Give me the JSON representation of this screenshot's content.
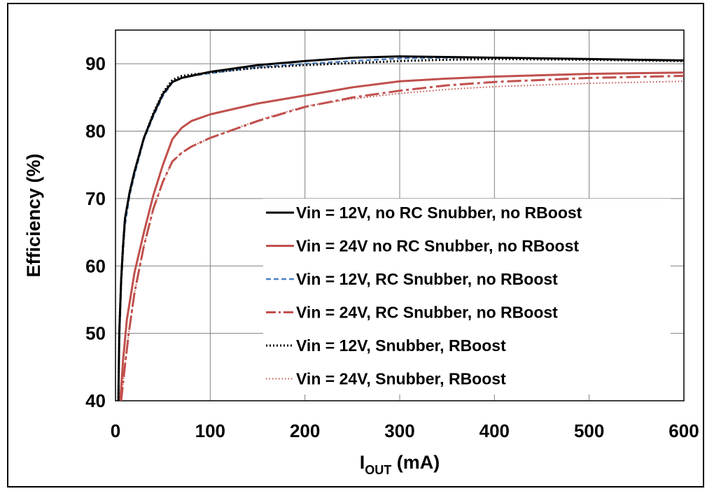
{
  "chart_data": {
    "type": "line",
    "xlabel_main": "I",
    "xlabel_sub": "OUT",
    "xlabel_unit": " (mA)",
    "ylabel": "Efficiency (%)",
    "xlim": [
      0,
      600
    ],
    "ylim": [
      40,
      95
    ],
    "xticks": [
      "0",
      "100",
      "200",
      "300",
      "400",
      "500",
      "600"
    ],
    "yticks": [
      "40",
      "50",
      "60",
      "70",
      "80",
      "90"
    ],
    "grid": true,
    "legend_position": "center-right",
    "series": [
      {
        "name": "Vin = 12V, no RC Snubber, no RBoost",
        "color": "#000000",
        "dash": "solid",
        "points": [
          [
            3,
            40
          ],
          [
            4,
            50
          ],
          [
            6,
            58
          ],
          [
            8,
            63
          ],
          [
            10,
            67
          ],
          [
            15,
            71
          ],
          [
            20,
            74
          ],
          [
            30,
            79
          ],
          [
            40,
            82.5
          ],
          [
            50,
            85.5
          ],
          [
            60,
            87.3
          ],
          [
            70,
            87.9
          ],
          [
            80,
            88.2
          ],
          [
            100,
            88.8
          ],
          [
            150,
            89.8
          ],
          [
            200,
            90.4
          ],
          [
            250,
            90.9
          ],
          [
            300,
            91.1
          ],
          [
            350,
            91.0
          ],
          [
            400,
            90.9
          ],
          [
            500,
            90.7
          ],
          [
            600,
            90.5
          ]
        ]
      },
      {
        "name": "Vin = 24V no RC Snubber, no RBoost",
        "color": "#c0504d",
        "dash": "solid",
        "points": [
          [
            5,
            40
          ],
          [
            8,
            46
          ],
          [
            12,
            52
          ],
          [
            20,
            59
          ],
          [
            30,
            65
          ],
          [
            40,
            70.5
          ],
          [
            50,
            75
          ],
          [
            60,
            78.8
          ],
          [
            70,
            80.5
          ],
          [
            80,
            81.5
          ],
          [
            100,
            82.5
          ],
          [
            150,
            84.1
          ],
          [
            200,
            85.3
          ],
          [
            250,
            86.5
          ],
          [
            300,
            87.4
          ],
          [
            350,
            87.8
          ],
          [
            400,
            88.1
          ],
          [
            500,
            88.5
          ],
          [
            600,
            88.7
          ]
        ]
      },
      {
        "name": "Vin = 12V, RC Snubber, no RBoost",
        "color": "#4f81bd",
        "dash": "dashed",
        "points": [
          [
            3,
            40
          ],
          [
            4,
            49
          ],
          [
            6,
            57
          ],
          [
            8,
            62
          ],
          [
            10,
            66
          ],
          [
            15,
            70.5
          ],
          [
            20,
            73.5
          ],
          [
            30,
            78.8
          ],
          [
            40,
            82.2
          ],
          [
            50,
            85.2
          ],
          [
            60,
            87.2
          ],
          [
            70,
            87.9
          ],
          [
            80,
            88.2
          ],
          [
            100,
            88.6
          ],
          [
            150,
            89.5
          ],
          [
            200,
            90.0
          ],
          [
            250,
            90.4
          ],
          [
            300,
            90.8
          ],
          [
            350,
            90.9
          ],
          [
            400,
            90.9
          ],
          [
            500,
            90.7
          ],
          [
            600,
            90.5
          ]
        ]
      },
      {
        "name": "Vin = 24V, RC Snubber, no RBoost",
        "color": "#c0504d",
        "dash": "longdash",
        "points": [
          [
            6,
            40
          ],
          [
            9,
            44
          ],
          [
            14,
            50
          ],
          [
            20,
            56
          ],
          [
            30,
            63
          ],
          [
            40,
            68.5
          ],
          [
            50,
            72.5
          ],
          [
            60,
            75.5
          ],
          [
            70,
            76.8
          ],
          [
            80,
            77.7
          ],
          [
            100,
            79.0
          ],
          [
            150,
            81.5
          ],
          [
            200,
            83.6
          ],
          [
            250,
            85.0
          ],
          [
            300,
            86.0
          ],
          [
            350,
            86.8
          ],
          [
            400,
            87.3
          ],
          [
            500,
            87.9
          ],
          [
            600,
            88.2
          ]
        ]
      },
      {
        "name": "Vin = 12V, Snubber, RBoost",
        "color": "#000000",
        "dash": "dotted",
        "points": [
          [
            3,
            40
          ],
          [
            4,
            50
          ],
          [
            6,
            58
          ],
          [
            8,
            63
          ],
          [
            10,
            67
          ],
          [
            15,
            71
          ],
          [
            20,
            74
          ],
          [
            30,
            79
          ],
          [
            40,
            82.7
          ],
          [
            50,
            85.7
          ],
          [
            60,
            87.6
          ],
          [
            70,
            88.2
          ],
          [
            80,
            88.4
          ],
          [
            100,
            88.7
          ],
          [
            150,
            89.4
          ],
          [
            200,
            89.8
          ],
          [
            250,
            90.1
          ],
          [
            300,
            90.4
          ],
          [
            350,
            90.6
          ],
          [
            400,
            90.7
          ],
          [
            500,
            90.6
          ],
          [
            600,
            90.4
          ]
        ]
      },
      {
        "name": "Vin = 24V, Snubber, RBoost",
        "color": "#c0504d",
        "dash": "fine-dotted",
        "points": [
          [
            6,
            40
          ],
          [
            9,
            44
          ],
          [
            14,
            50
          ],
          [
            20,
            56
          ],
          [
            30,
            63
          ],
          [
            40,
            68.5
          ],
          [
            50,
            72.5
          ],
          [
            60,
            75.5
          ],
          [
            70,
            76.8
          ],
          [
            80,
            77.7
          ],
          [
            100,
            79.0
          ],
          [
            150,
            81.6
          ],
          [
            200,
            83.7
          ],
          [
            250,
            84.8
          ],
          [
            300,
            85.6
          ],
          [
            350,
            86.2
          ],
          [
            400,
            86.6
          ],
          [
            500,
            87.1
          ],
          [
            600,
            87.4
          ]
        ]
      }
    ]
  }
}
